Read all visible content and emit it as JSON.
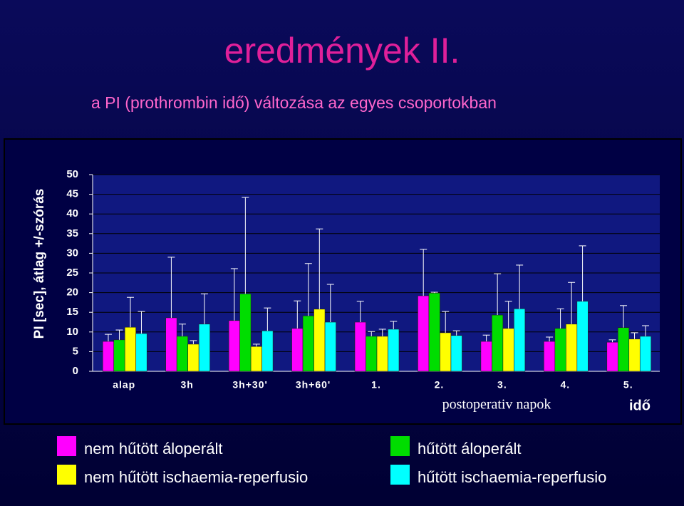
{
  "chart_data": {
    "type": "bar",
    "title": "eredmények II.",
    "subtitle": "a PI (prothrombin idő) változása az egyes csoportokban",
    "y_label": "PI [sec], átlag +/-szórás",
    "x_label": "postoperativ napok",
    "x_unit_label": "idő",
    "categories": [
      "alap",
      "3h",
      "3h+30'",
      "3h+60'",
      "1.",
      "2.",
      "3.",
      "4.",
      "5."
    ],
    "series": [
      {
        "name": "nem hűtött áloperált",
        "color": "#ff00ff",
        "values": [
          7.6,
          13.6,
          12.9,
          10.9,
          12.5,
          19.2,
          7.6,
          7.6,
          7.4
        ],
        "errors": [
          1.8,
          15.4,
          13.2,
          7.0,
          5.3,
          11.8,
          1.6,
          1.1,
          0.6
        ]
      },
      {
        "name": "hűtött áloperált",
        "color": "#00dd00",
        "values": [
          8.0,
          8.9,
          19.7,
          14.1,
          8.9,
          19.9,
          14.3,
          10.9,
          11.1
        ],
        "errors": [
          2.5,
          3.1,
          24.5,
          13.3,
          1.2,
          0.2,
          10.5,
          5.0,
          5.6
        ]
      },
      {
        "name": "nem hűtött ischaemia-reperfusio",
        "color": "#ffff00",
        "values": [
          11.2,
          6.9,
          6.3,
          15.8,
          8.9,
          9.8,
          10.9,
          12.0,
          8.2
        ],
        "errors": [
          7.6,
          0.9,
          0.6,
          20.4,
          1.8,
          5.4,
          6.9,
          10.6,
          1.6
        ]
      },
      {
        "name": "hűtött ischaemia-reperfusio",
        "color": "#00ffff",
        "values": [
          9.6,
          12.0,
          10.3,
          12.5,
          10.7,
          9.1,
          15.9,
          17.8,
          8.9
        ],
        "errors": [
          5.6,
          7.7,
          5.8,
          9.6,
          2.0,
          1.2,
          11.1,
          14.1,
          2.7
        ]
      }
    ],
    "ylim": [
      0,
      50
    ],
    "yticks": [
      0,
      5,
      10,
      15,
      20,
      25,
      30,
      35,
      40,
      45,
      50
    ],
    "grid": true
  }
}
